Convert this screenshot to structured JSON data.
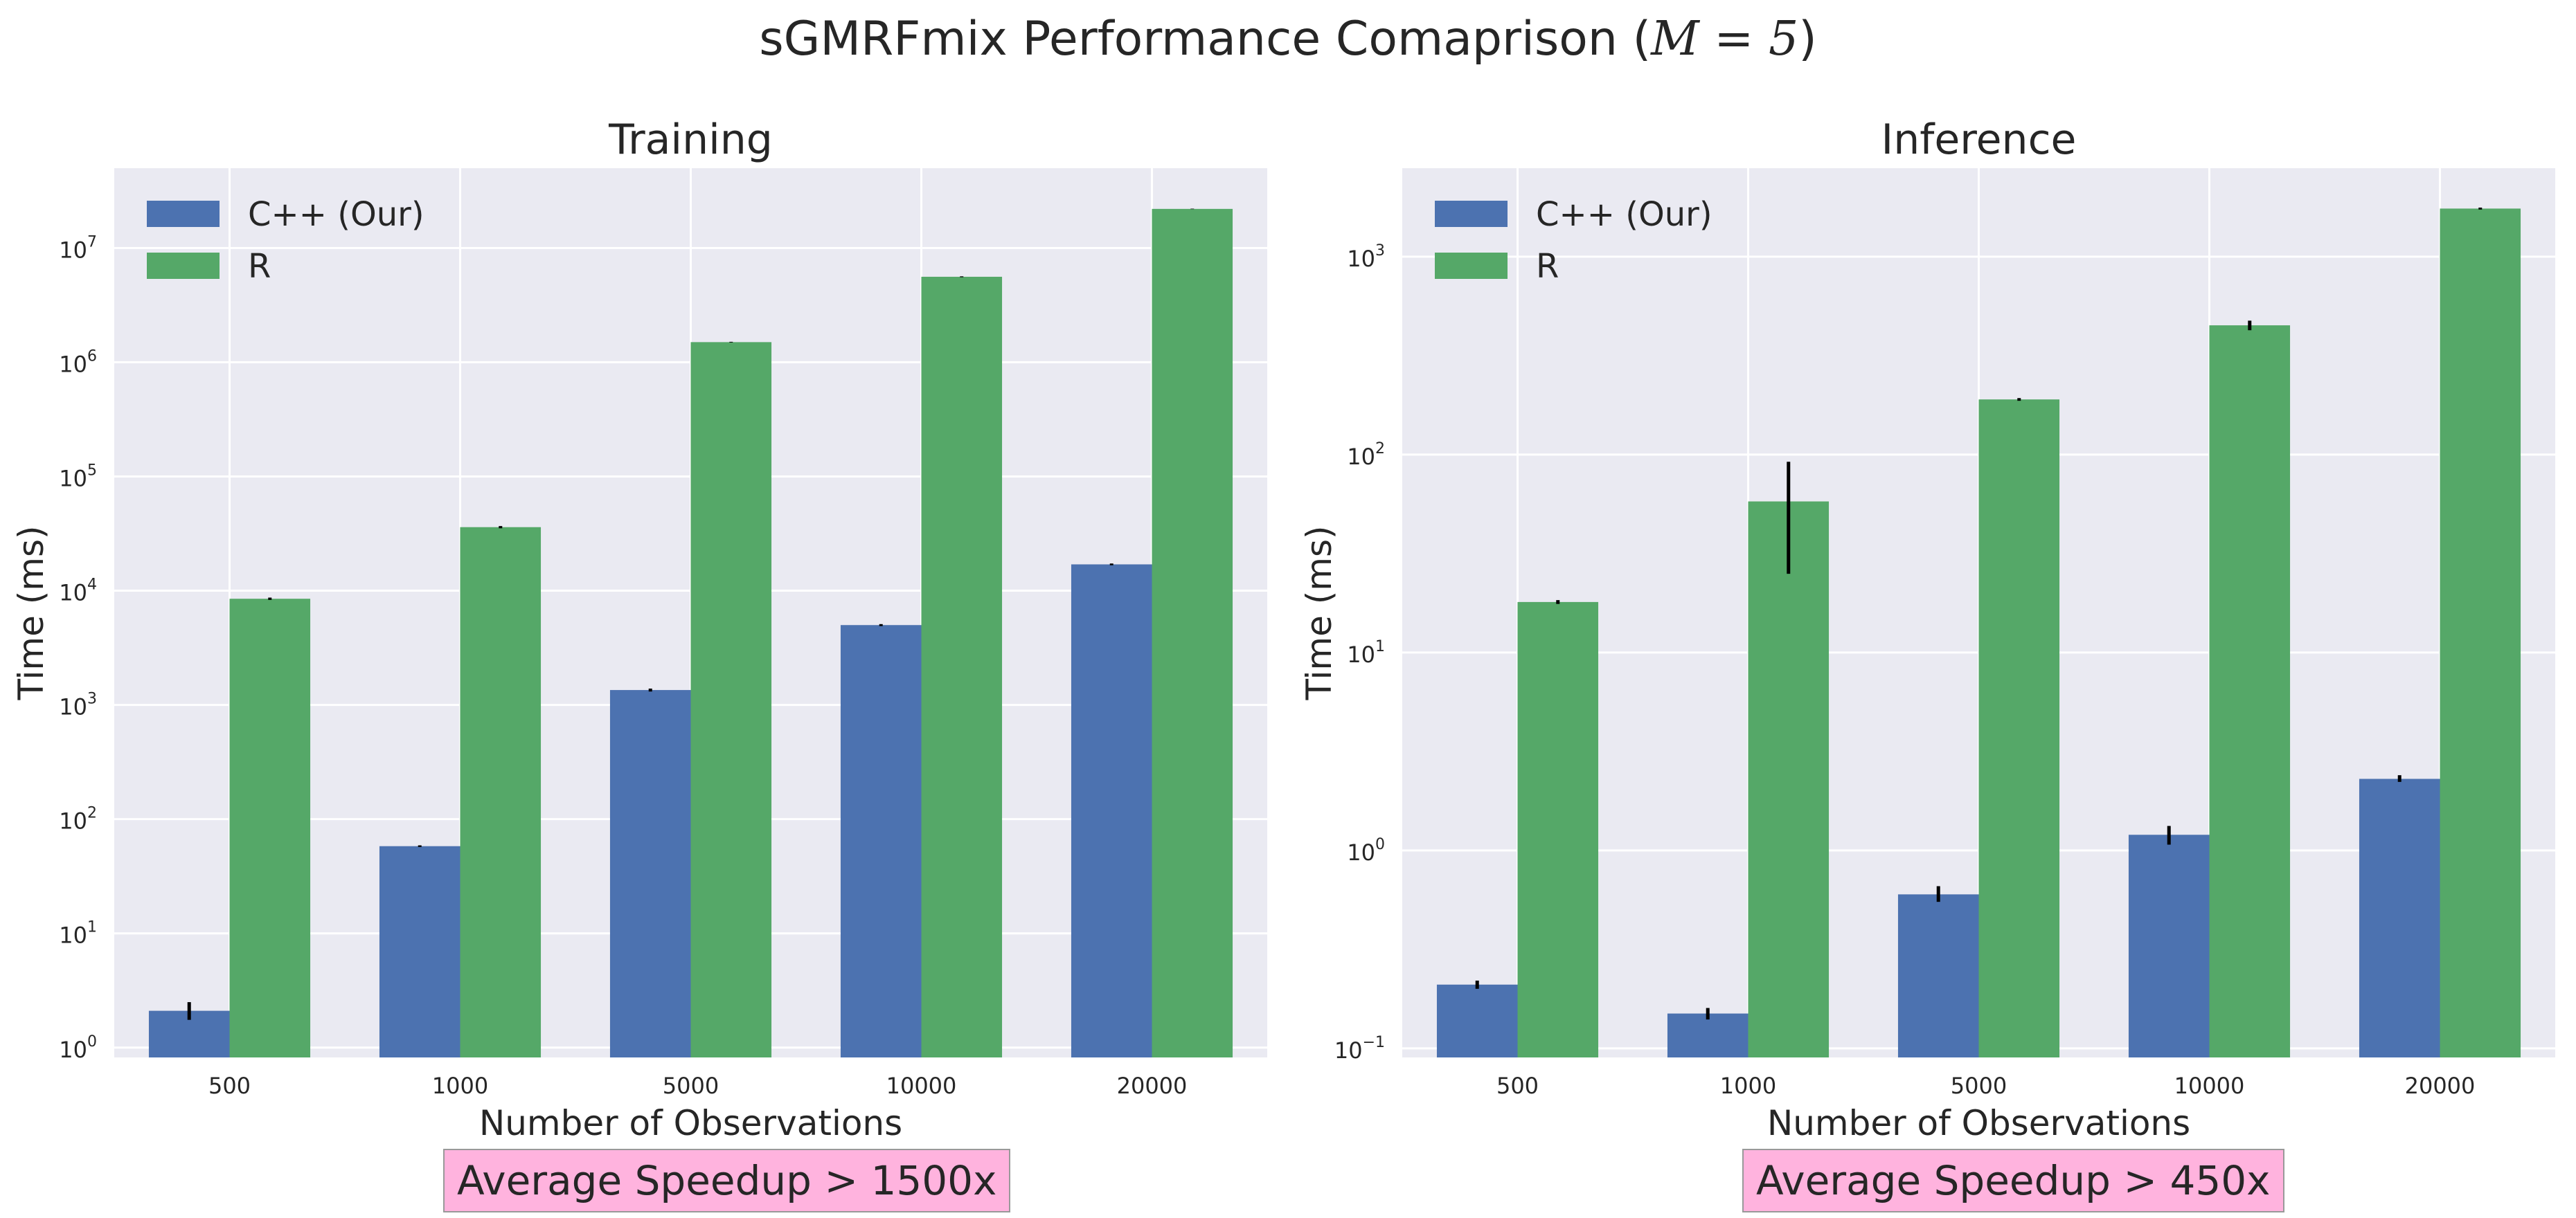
{
  "title": {
    "prefix": "sGMRFmix Performance Comaprison (",
    "math": "M = 5",
    "suffix": ")"
  },
  "colors": {
    "cpp": "#4c72b0",
    "r": "#55a868",
    "plot_bg": "#eaeaf2",
    "grid": "#ffffff",
    "speedup_bg": "#ffb3de"
  },
  "chart_data": [
    {
      "type": "bar",
      "title": "Training",
      "xlabel": "Number of Observations",
      "ylabel": "Time (ms)",
      "yscale": "log",
      "ylim": [
        0.82,
        50000000
      ],
      "yticks": [
        {
          "value": 1,
          "exp": "0"
        },
        {
          "value": 10,
          "exp": "1"
        },
        {
          "value": 100,
          "exp": "2"
        },
        {
          "value": 1000,
          "exp": "3"
        },
        {
          "value": 10000,
          "exp": "4"
        },
        {
          "value": 100000,
          "exp": "5"
        },
        {
          "value": 1000000,
          "exp": "6"
        },
        {
          "value": 10000000,
          "exp": "7"
        }
      ],
      "ytick_base": "10",
      "categories": [
        "500",
        "1000",
        "5000",
        "10000",
        "20000"
      ],
      "series": [
        {
          "name": "C++ (Our)",
          "color_key": "cpp",
          "values": [
            2.1,
            58,
            1350,
            5000,
            17000
          ],
          "err_low": [
            1.75,
            57,
            1310,
            4900,
            16700
          ],
          "err_high": [
            2.5,
            59,
            1390,
            5100,
            17300
          ]
        },
        {
          "name": "R",
          "color_key": "r",
          "values": [
            8500,
            36000,
            1500000,
            5600000,
            22000000
          ],
          "err_low": [
            8300,
            35200,
            1490000,
            5550000,
            21900000
          ],
          "err_high": [
            8700,
            36800,
            1510000,
            5650000,
            22100000
          ]
        }
      ],
      "legend": "upper-left",
      "grid": true,
      "annotation": "Average Speedup > 1500x"
    },
    {
      "type": "bar",
      "title": "Inference",
      "xlabel": "Number of Observations",
      "ylabel": "Time (ms)",
      "yscale": "log",
      "ylim": [
        0.09,
        2800
      ],
      "yticks": [
        {
          "value": 0.1,
          "exp": "−1"
        },
        {
          "value": 1,
          "exp": "0"
        },
        {
          "value": 10,
          "exp": "1"
        },
        {
          "value": 100,
          "exp": "2"
        },
        {
          "value": 1000,
          "exp": "3"
        }
      ],
      "ytick_base": "10",
      "categories": [
        "500",
        "1000",
        "5000",
        "10000",
        "20000"
      ],
      "series": [
        {
          "name": "C++ (Our)",
          "color_key": "cpp",
          "values": [
            0.21,
            0.15,
            0.6,
            1.2,
            2.3
          ],
          "err_low": [
            0.2,
            0.14,
            0.55,
            1.07,
            2.22
          ],
          "err_high": [
            0.22,
            0.16,
            0.66,
            1.33,
            2.4
          ]
        },
        {
          "name": "R",
          "color_key": "r",
          "values": [
            18,
            58,
            190,
            450,
            1750
          ],
          "err_low": [
            17.6,
            25,
            187,
            425,
            1730
          ],
          "err_high": [
            18.4,
            92,
            193,
            475,
            1770
          ]
        }
      ],
      "legend": "upper-left",
      "grid": true,
      "annotation": "Average Speedup > 450x"
    }
  ]
}
